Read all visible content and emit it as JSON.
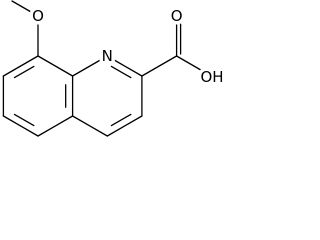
{
  "atoms": [
    {
      "label": "O"
    },
    {
      "label": "N"
    },
    {
      "label": "O"
    },
    {
      "label": "OH"
    }
  ]
}
